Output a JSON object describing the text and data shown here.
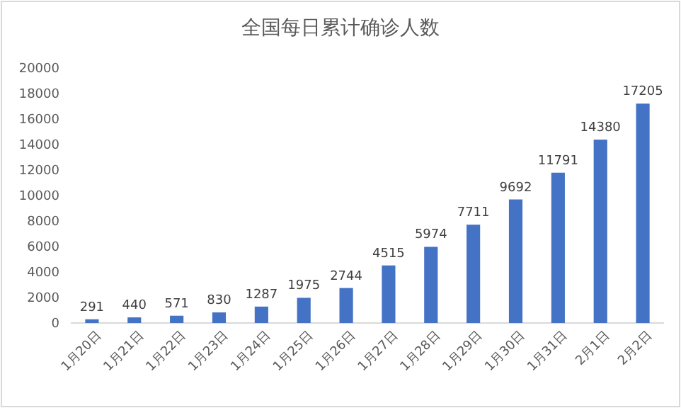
{
  "chart_data": {
    "type": "bar",
    "title": "全国每日累计确诊人数",
    "categories": [
      "1月20日",
      "1月21日",
      "1月22日",
      "1月23日",
      "1月24日",
      "1月25日",
      "1月26日",
      "1月27日",
      "1月28日",
      "1月29日",
      "1月30日",
      "1月31日",
      "2月1日",
      "2月2日"
    ],
    "values": [
      291,
      440,
      571,
      830,
      1287,
      1975,
      2744,
      4515,
      5974,
      7711,
      9692,
      11791,
      14380,
      17205
    ],
    "color": "#4472c4",
    "ylim": [
      0,
      20000
    ],
    "yticks": [
      0,
      2000,
      4000,
      6000,
      8000,
      10000,
      12000,
      14000,
      16000,
      18000,
      20000
    ],
    "grid": false,
    "data_labels": true
  }
}
